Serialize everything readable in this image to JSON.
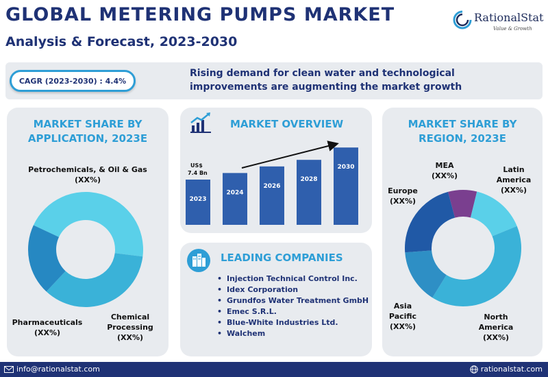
{
  "header": {
    "title": "GLOBAL METERING PUMPS MARKET",
    "subtitle": "Analysis & Forecast, 2023-2030"
  },
  "brand": {
    "name": "RationalStat",
    "tagline": "Value & Growth",
    "colors": {
      "navy": "#1f3275",
      "accent": "#2e9ed6",
      "panel": "#e8ebef"
    }
  },
  "banner": {
    "cagr": "CAGR (2023-2030) : 4.4%",
    "headline": "Rising demand for clean water and technological improvements are augmenting the market growth"
  },
  "application": {
    "heading_line1": "MARKET SHARE BY",
    "heading_line2": "APPLICATION, 2023E",
    "segments": [
      {
        "name": "Petrochemicals, & Oil & Gas",
        "value": "(XX%)",
        "color": "#5ad0e9",
        "share": 0.45
      },
      {
        "name": "Chemical",
        "name_line2": "Processing",
        "value": "(XX%)",
        "color": "#3ab2d8",
        "share": 0.35
      },
      {
        "name": "Pharmaceuticals",
        "value": "(XX%)",
        "color": "#2688c2",
        "share": 0.2
      }
    ]
  },
  "overview": {
    "heading": "MARKET OVERVIEW",
    "icon": "growth-chart-icon"
  },
  "chart_data": {
    "type": "bar",
    "categories": [
      "2023",
      "2024",
      "2026",
      "2028",
      "2030"
    ],
    "value_label": "US$\n7.4 Bn",
    "value_label_line1": "US$",
    "value_label_line2": "7.4 Bn",
    "relative_heights": [
      0.55,
      0.63,
      0.71,
      0.79,
      0.94
    ],
    "bar_color": "#2f5fad",
    "trend_arrow": true
  },
  "leading": {
    "heading": "LEADING COMPANIES",
    "icon": "buildings-icon",
    "companies": [
      "Injection Technical Control Inc.",
      "Idex Corporation",
      "Grundfos Water Treatment GmbH",
      "Emec S.R.L.",
      "Blue-White Industries Ltd.",
      "Walchem"
    ]
  },
  "region": {
    "heading_line1": "MARKET SHARE BY",
    "heading_line2": "REGION, 2023E",
    "segments": [
      {
        "name": "MEA",
        "value": "(XX%)",
        "color": "#7a3f8f",
        "share": 0.08
      },
      {
        "name": "Latin",
        "name_line2": "America",
        "value": "(XX%)",
        "color": "#5ad0e9",
        "share": 0.15
      },
      {
        "name": "North",
        "name_line2": "America",
        "value": "(XX%)",
        "color": "#3ab2d8",
        "share": 0.4
      },
      {
        "name": "Asia",
        "name_line2": "Pacific",
        "value": "(XX%)",
        "color": "#2e8fc5",
        "share": 0.15
      },
      {
        "name": "Europe",
        "value": "(XX%)",
        "color": "#2059a6",
        "share": 0.22
      }
    ]
  },
  "footer": {
    "email": "info@rationalstat.com",
    "website": "rationalstat.com",
    "email_icon": "mail-icon",
    "web_icon": "globe-icon"
  }
}
